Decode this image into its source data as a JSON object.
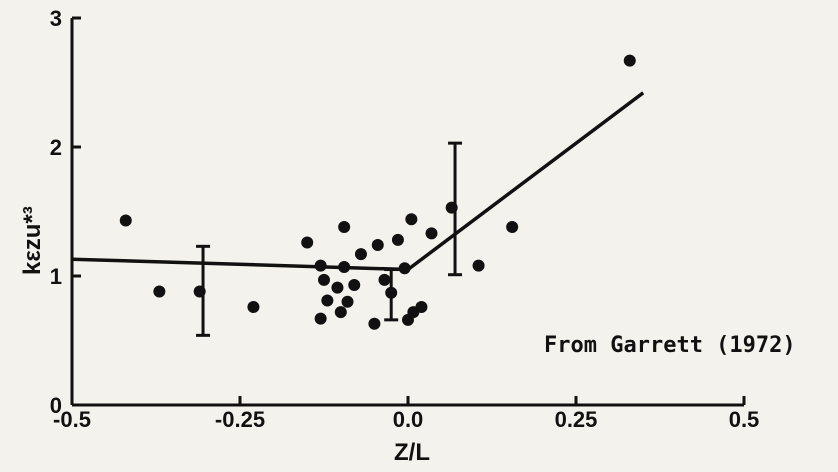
{
  "chart_data": {
    "type": "scatter",
    "title": "",
    "xlabel": "Z/L",
    "ylabel": "kεzu*³",
    "xlim": [
      -0.5,
      0.5
    ],
    "ylim": [
      0,
      3
    ],
    "x_ticks": [
      {
        "value": -0.5,
        "label": "-0.5"
      },
      {
        "value": -0.25,
        "label": "-0.25"
      },
      {
        "value": 0.0,
        "label": "0.0"
      },
      {
        "value": 0.25,
        "label": "0.25"
      },
      {
        "value": 0.5,
        "label": "0.5"
      }
    ],
    "y_ticks": [
      {
        "value": 0,
        "label": "0"
      },
      {
        "value": 1,
        "label": "1"
      },
      {
        "value": 2,
        "label": "2"
      },
      {
        "value": 3,
        "label": "3"
      }
    ],
    "annotation": "From Garrett (1972)",
    "points": [
      {
        "x": -0.42,
        "y": 1.43
      },
      {
        "x": -0.37,
        "y": 0.88
      },
      {
        "x": -0.31,
        "y": 0.88
      },
      {
        "x": -0.23,
        "y": 0.76
      },
      {
        "x": -0.15,
        "y": 1.26
      },
      {
        "x": -0.13,
        "y": 1.08
      },
      {
        "x": -0.125,
        "y": 0.97
      },
      {
        "x": -0.12,
        "y": 0.81
      },
      {
        "x": -0.13,
        "y": 0.67
      },
      {
        "x": -0.105,
        "y": 0.91
      },
      {
        "x": -0.1,
        "y": 0.72
      },
      {
        "x": -0.095,
        "y": 1.38
      },
      {
        "x": -0.095,
        "y": 1.07
      },
      {
        "x": -0.09,
        "y": 0.8
      },
      {
        "x": -0.08,
        "y": 0.93
      },
      {
        "x": -0.07,
        "y": 1.17
      },
      {
        "x": -0.05,
        "y": 0.63
      },
      {
        "x": -0.045,
        "y": 1.24
      },
      {
        "x": -0.035,
        "y": 0.97
      },
      {
        "x": -0.025,
        "y": 0.87
      },
      {
        "x": -0.015,
        "y": 1.28
      },
      {
        "x": -0.005,
        "y": 1.06
      },
      {
        "x": 0.0,
        "y": 0.66
      },
      {
        "x": 0.005,
        "y": 1.44
      },
      {
        "x": 0.008,
        "y": 0.72
      },
      {
        "x": 0.02,
        "y": 0.76
      },
      {
        "x": 0.035,
        "y": 1.33
      },
      {
        "x": 0.065,
        "y": 1.53
      },
      {
        "x": 0.105,
        "y": 1.08
      },
      {
        "x": 0.155,
        "y": 1.38
      },
      {
        "x": 0.33,
        "y": 2.67
      }
    ],
    "error_bars": [
      {
        "x": -0.305,
        "low": 0.54,
        "high": 1.23
      },
      {
        "x": -0.025,
        "low": 0.66,
        "high": 1.05
      },
      {
        "x": 0.07,
        "low": 1.01,
        "high": 2.03
      }
    ],
    "fit_line": [
      {
        "x": -0.5,
        "y": 1.13
      },
      {
        "x": 0.0,
        "y": 1.05
      },
      {
        "x": 0.35,
        "y": 2.42
      }
    ]
  }
}
